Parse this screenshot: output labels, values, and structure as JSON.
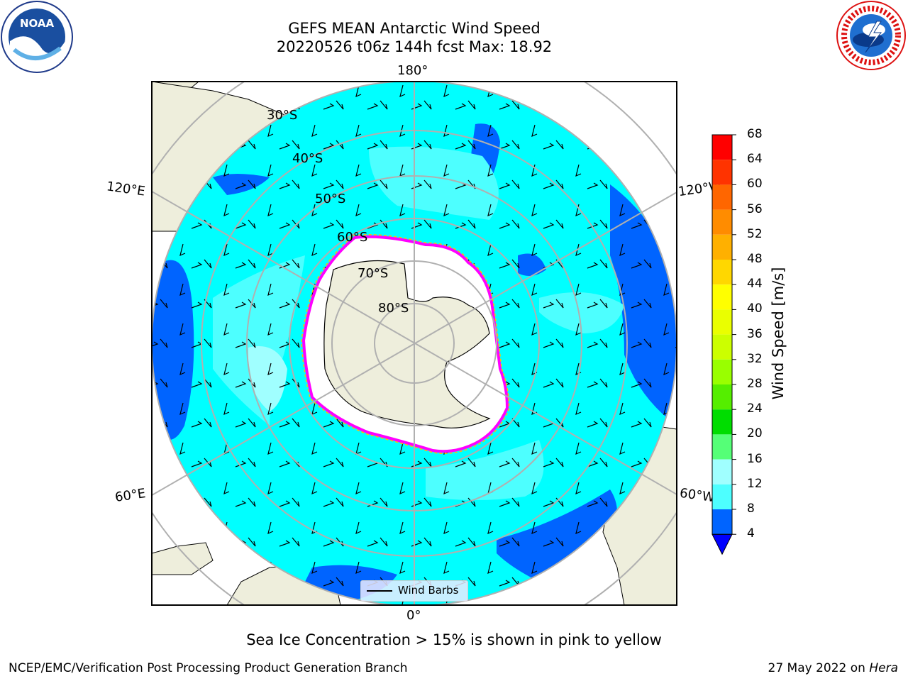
{
  "header": {
    "title_line1": "GEFS MEAN Antarctic Wind Speed",
    "title_line2": "20220526 t06z 144h fcst   Max: 18.92"
  },
  "logos": {
    "left": {
      "icon": "noaa-logo",
      "text": "NOAA"
    },
    "right": {
      "icon": "national-weather-service-logo"
    }
  },
  "map": {
    "projection": "south-polar-stereographic",
    "longitude_labels": {
      "top": "180°",
      "bottom": "0°",
      "left_upper": "120°E",
      "left_lower": "60°E",
      "right_upper": "120°W",
      "right_lower": "60°W"
    },
    "latitude_labels": [
      "30°S",
      "40°S",
      "50°S",
      "60°S",
      "70°S",
      "80°S"
    ],
    "colors": {
      "land": "#eeeedc",
      "ocean_4_8": "#0064ff",
      "ocean_8_12": "#00ffff",
      "ocean_12_16": "#4dffff",
      "ocean_16_20": "#a0ffff",
      "ice_edge": [
        "#ff00ff",
        "#ff69b4",
        "#ffc000"
      ]
    }
  },
  "legend": {
    "label": "Wind Barbs"
  },
  "colorbar": {
    "label": "Wind Speed [m/s]",
    "ticks": [
      "68",
      "64",
      "60",
      "56",
      "52",
      "48",
      "44",
      "40",
      "36",
      "32",
      "28",
      "24",
      "20",
      "16",
      "12",
      "8",
      "4"
    ],
    "colors": [
      "#ff0000",
      "#ff3300",
      "#ff6600",
      "#ff8c00",
      "#ffb000",
      "#ffd700",
      "#ffff00",
      "#eaff00",
      "#ccff00",
      "#99ff00",
      "#55ee00",
      "#00dd00",
      "#55ff77",
      "#a0ffff",
      "#4dffff",
      "#00ffff",
      "#0064ff"
    ],
    "extend_color": "#0000ff"
  },
  "footer": {
    "note": "Sea Ice Concentration > 15% is shown in pink to yellow",
    "left": "NCEP/EMC/Verification Post Processing Product Generation Branch",
    "date": "27 May 2022 on ",
    "machine": "Hera"
  }
}
